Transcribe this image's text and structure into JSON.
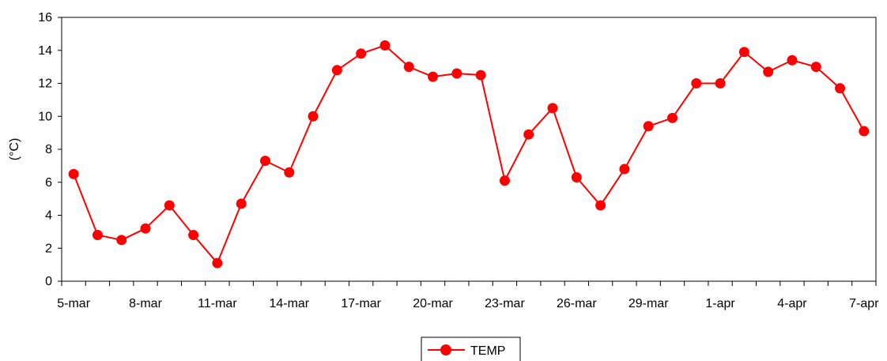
{
  "chart_data": {
    "type": "line",
    "title": "",
    "xlabel": "",
    "ylabel": "(°C)",
    "ylim": [
      0,
      16
    ],
    "yticks": [
      0,
      2,
      4,
      6,
      8,
      10,
      12,
      14,
      16
    ],
    "grid": false,
    "legend_position": "bottom-center",
    "x": [
      "5-mar",
      "6-mar",
      "7-mar",
      "8-mar",
      "9-mar",
      "10-mar",
      "11-mar",
      "12-mar",
      "13-mar",
      "14-mar",
      "15-mar",
      "16-mar",
      "17-mar",
      "18-mar",
      "19-mar",
      "20-mar",
      "21-mar",
      "22-mar",
      "23-mar",
      "24-mar",
      "25-mar",
      "26-mar",
      "27-mar",
      "28-mar",
      "29-mar",
      "30-mar",
      "31-mar",
      "1-apr",
      "2-apr",
      "3-apr",
      "4-apr",
      "5-apr",
      "6-apr",
      "7-apr"
    ],
    "x_tick_labels": [
      "5-mar",
      "8-mar",
      "11-mar",
      "14-mar",
      "17-mar",
      "20-mar",
      "23-mar",
      "26-mar",
      "29-mar",
      "1-apr",
      "4-apr",
      "7-apr"
    ],
    "series": [
      {
        "name": "TEMP",
        "color": "#ff0000",
        "values": [
          6.5,
          2.8,
          2.5,
          3.2,
          4.6,
          2.8,
          1.1,
          4.7,
          7.3,
          6.6,
          10.0,
          12.8,
          13.8,
          14.3,
          13.0,
          12.4,
          12.6,
          12.5,
          6.1,
          8.9,
          10.5,
          6.3,
          4.6,
          6.8,
          9.4,
          9.9,
          12.0,
          12.0,
          13.9,
          12.7,
          13.4,
          13.0,
          11.7,
          9.1
        ]
      }
    ]
  },
  "legend": {
    "label": "TEMP"
  }
}
